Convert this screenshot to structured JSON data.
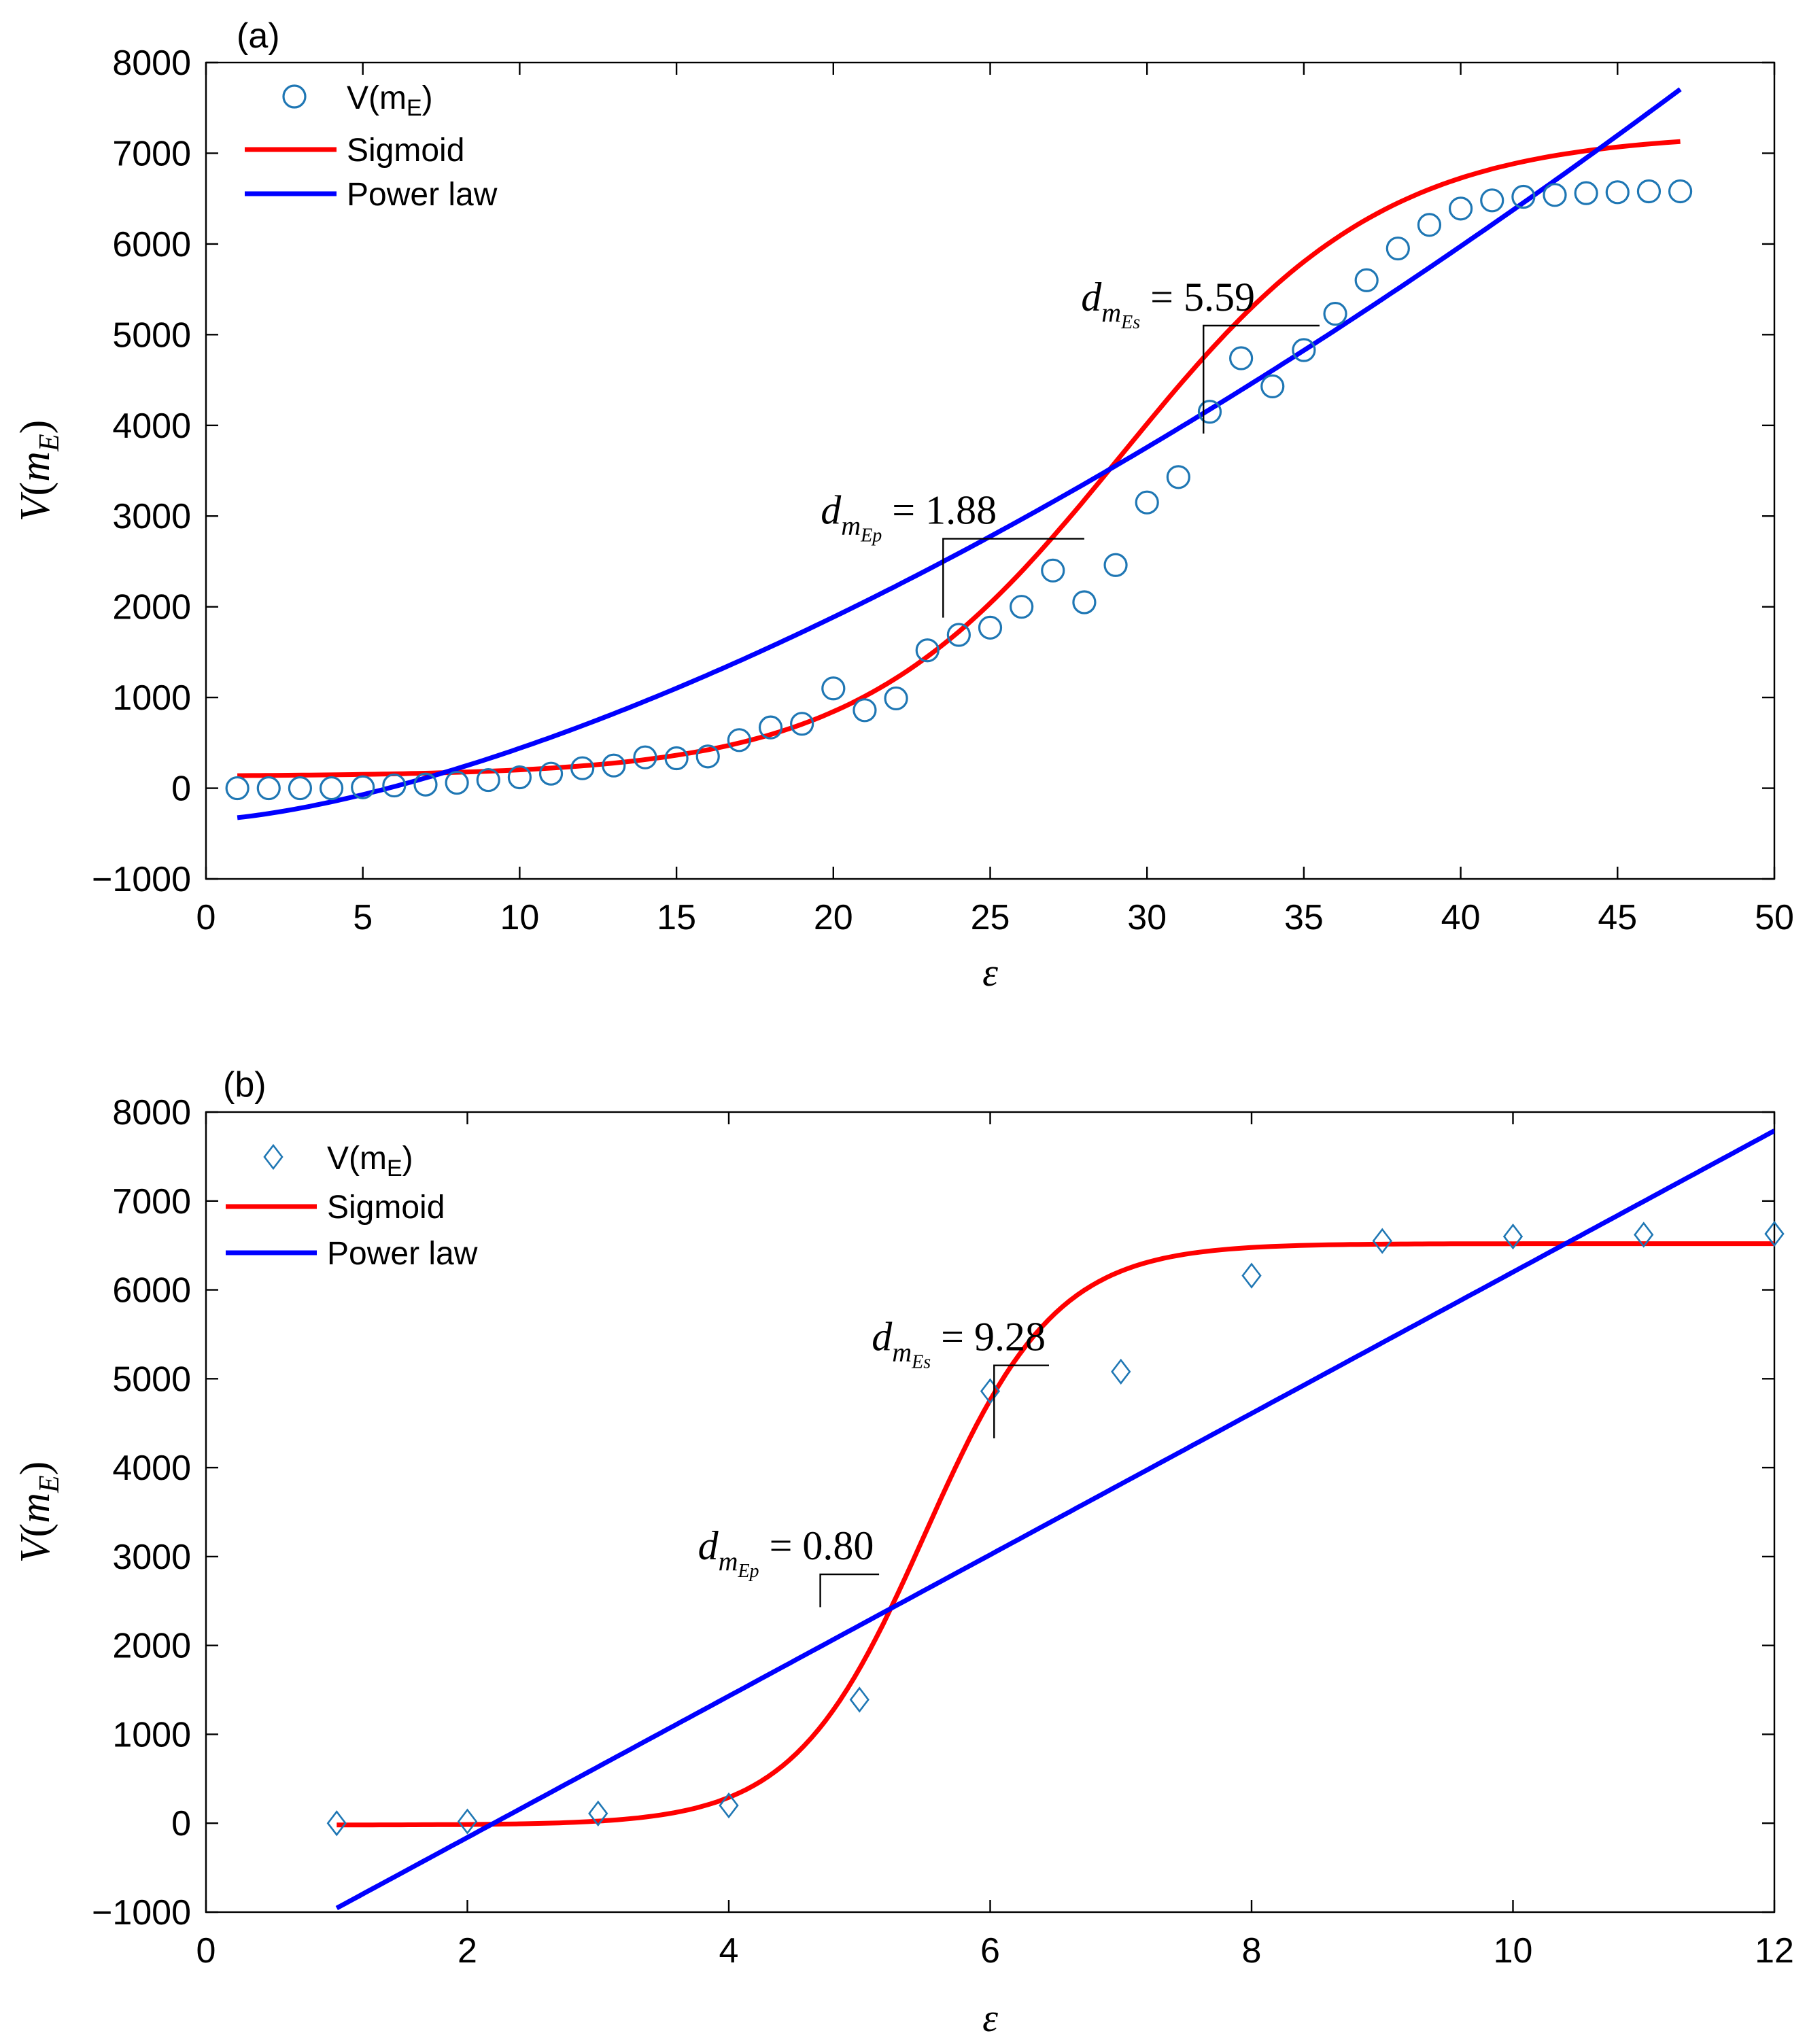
{
  "chart_data": [
    {
      "panel_label": "(a)",
      "type": "scatter",
      "title": "",
      "xlabel": "ε",
      "ylabel": {
        "base": "V",
        "paren_open": "(",
        "var": "m",
        "sub": "E",
        "paren_close": ")"
      },
      "xlim": [
        0,
        50
      ],
      "ylim": [
        -1000,
        8000
      ],
      "xticks": [
        0,
        5,
        10,
        15,
        20,
        25,
        30,
        35,
        40,
        45,
        50
      ],
      "yticks": [
        -1000,
        0,
        1000,
        2000,
        3000,
        4000,
        5000,
        6000,
        7000,
        8000
      ],
      "ytick_labels": [
        "−1000",
        "0",
        "1000",
        "2000",
        "3000",
        "4000",
        "5000",
        "6000",
        "7000",
        "8000"
      ],
      "grid": false,
      "legend_position": "top-left",
      "legend": [
        {
          "kind": "marker",
          "marker": "circle",
          "base": "V(m",
          "sub": "E",
          "close": ")"
        },
        {
          "kind": "line",
          "label": "Sigmoid",
          "color": "#ff0000"
        },
        {
          "kind": "line",
          "label": "Power law",
          "color": "#0000ff"
        }
      ],
      "series": [
        {
          "name": "V(mE)",
          "marker": "circle",
          "color": "#1f77b4",
          "x": [
            1,
            2,
            3,
            4,
            5,
            6,
            7,
            8,
            9,
            10,
            11,
            12,
            13,
            14,
            15,
            16,
            17,
            18,
            19,
            20,
            21,
            22,
            23,
            24,
            25,
            26,
            27,
            28,
            29,
            30,
            31,
            32,
            33,
            34,
            35,
            36,
            37,
            38,
            39,
            40,
            41,
            42,
            43,
            44,
            45,
            46,
            47
          ],
          "y": [
            0,
            0,
            0,
            0,
            10,
            30,
            40,
            60,
            90,
            120,
            160,
            220,
            250,
            340,
            330,
            350,
            530,
            670,
            710,
            1100,
            860,
            990,
            1520,
            1690,
            1770,
            2000,
            2400,
            2050,
            2460,
            3150,
            3430,
            4150,
            4740,
            4430,
            4830,
            5230,
            5600,
            5950,
            6210,
            6390,
            6480,
            6520,
            6540,
            6560,
            6570,
            6580,
            6580
          ]
        },
        {
          "name": "Sigmoid",
          "kind": "sigmoid",
          "color": "#ff0000",
          "params": {
            "base": 130,
            "amplitude": 7100,
            "midpoint": 29.2,
            "scale": 4.2
          },
          "x_range": [
            1,
            47
          ]
        },
        {
          "name": "Power law",
          "kind": "power",
          "color": "#0000ff",
          "params": {
            "a": 25.0,
            "b": 1.5,
            "c": -350
          },
          "x_range": [
            1,
            47
          ]
        }
      ],
      "annotations": [
        {
          "sub2": "Ep",
          "value": "= 1.88",
          "corner": [
            23.5,
            1880
          ],
          "x_end": 28.0,
          "y_end": 2750
        },
        {
          "sub2": "Es",
          "value": "= 5.59",
          "corner": [
            31.8,
            3910
          ],
          "x_end": 35.5,
          "y_end": 5100
        }
      ]
    },
    {
      "panel_label": "(b)",
      "type": "scatter",
      "title": "",
      "xlabel": "ε",
      "ylabel": {
        "base": "V",
        "paren_open": "(",
        "var": "m",
        "sub": "E",
        "paren_close": ")"
      },
      "xlim": [
        0,
        12
      ],
      "ylim": [
        -1000,
        8000
      ],
      "xticks": [
        0,
        2,
        4,
        6,
        8,
        10,
        12
      ],
      "yticks": [
        -1000,
        0,
        1000,
        2000,
        3000,
        4000,
        5000,
        6000,
        7000,
        8000
      ],
      "ytick_labels": [
        "−1000",
        "0",
        "1000",
        "2000",
        "3000",
        "4000",
        "5000",
        "6000",
        "7000",
        "8000"
      ],
      "grid": false,
      "legend_position": "top-left",
      "legend": [
        {
          "kind": "marker",
          "marker": "diamond",
          "base": "V(m",
          "sub": "E",
          "close": ")"
        },
        {
          "kind": "line",
          "label": "Sigmoid",
          "color": "#ff0000"
        },
        {
          "kind": "line",
          "label": "Power law",
          "color": "#0000ff"
        }
      ],
      "series": [
        {
          "name": "V(mE)",
          "marker": "diamond",
          "color": "#1f77b4",
          "x": [
            1,
            2,
            3,
            4,
            5,
            6,
            7,
            8,
            9,
            10,
            11,
            12
          ],
          "y": [
            0,
            20,
            110,
            200,
            1390,
            4860,
            5080,
            6160,
            6550,
            6600,
            6620,
            6630
          ]
        },
        {
          "name": "Sigmoid",
          "kind": "sigmoid",
          "color": "#ff0000",
          "params": {
            "base": -20,
            "amplitude": 6540,
            "midpoint": 5.5,
            "scale": 0.5
          },
          "x_range": [
            1,
            12
          ]
        },
        {
          "name": "Power law",
          "kind": "power",
          "color": "#0000ff",
          "params": {
            "a": 795,
            "b": 1.0,
            "c": -1750
          },
          "x_range": [
            1,
            12
          ]
        }
      ],
      "annotations": [
        {
          "sub2": "Ep",
          "value": "= 0.80",
          "corner": [
            4.7,
            2430
          ],
          "x_end": 5.15,
          "y_end": 2800
        },
        {
          "sub2": "Es",
          "value": "= 9.28",
          "corner": [
            6.03,
            4330
          ],
          "x_end": 6.45,
          "y_end": 5150
        }
      ]
    }
  ]
}
